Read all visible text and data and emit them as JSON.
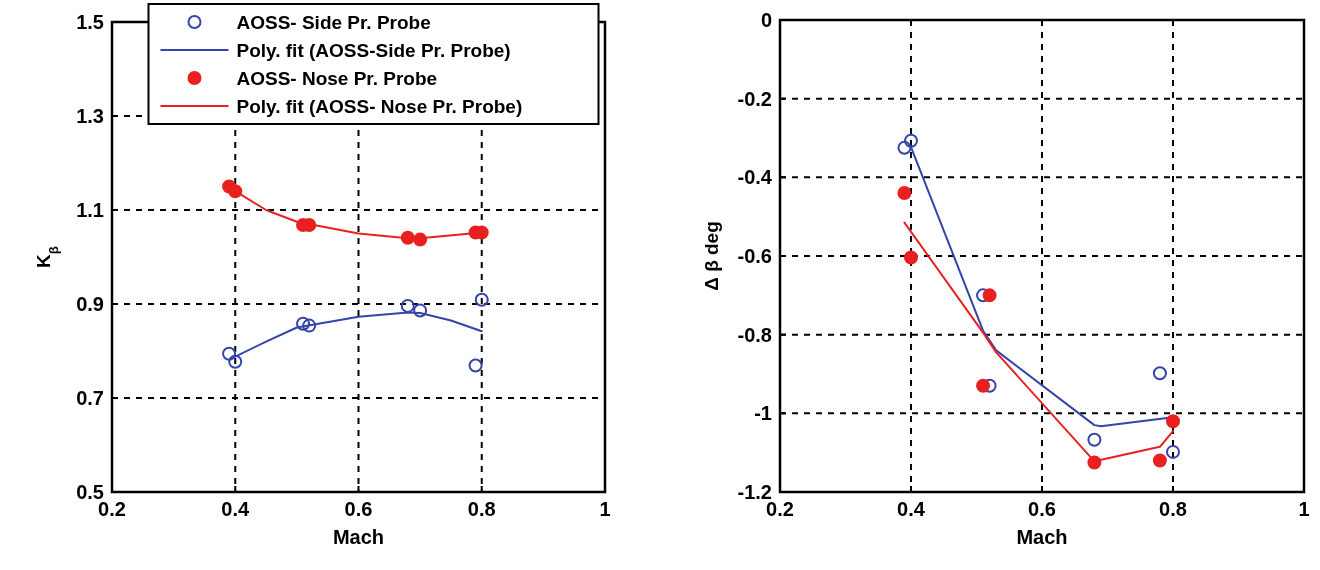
{
  "chart_data": [
    {
      "type": "scatter",
      "xlabel": "Mach",
      "ylabel": "K$_{β}$",
      "xlim": [
        0.2,
        1
      ],
      "xticks": [
        0.2,
        0.4,
        0.6,
        0.8,
        1
      ],
      "ylim": [
        0.5,
        1.5
      ],
      "yticks": [
        0.5,
        0.7,
        0.9,
        1.1,
        1.3,
        1.5
      ],
      "grid": true,
      "legend": "top",
      "series": [
        {
          "name": "AOSS- Side Pr. Probe",
          "marker": "circle",
          "color": "#3344aa",
          "x": [
            0.39,
            0.4,
            0.51,
            0.52,
            0.68,
            0.7,
            0.79,
            0.8
          ],
          "values": [
            0.794,
            0.777,
            0.858,
            0.854,
            0.896,
            0.886,
            0.769,
            0.909
          ]
        },
        {
          "name": "Poly. fit (AOSS-Side Pr. Probe)",
          "type": "line",
          "color": "#3344aa",
          "x": [
            0.4,
            0.45,
            0.5,
            0.6,
            0.68,
            0.7,
            0.75,
            0.8
          ],
          "values": [
            0.788,
            0.82,
            0.85,
            0.873,
            0.882,
            0.881,
            0.865,
            0.842
          ]
        },
        {
          "name": "AOSS- Nose Pr. Probe",
          "marker": "circle",
          "color": "#e82020",
          "x": [
            0.39,
            0.4,
            0.51,
            0.52,
            0.68,
            0.7,
            0.79,
            0.8
          ],
          "values": [
            1.15,
            1.14,
            1.068,
            1.068,
            1.041,
            1.037,
            1.052,
            1.052
          ]
        },
        {
          "name": "Poly. fit (AOSS- Nose Pr. Probe)",
          "type": "line",
          "color": "#e82020",
          "x": [
            0.4,
            0.45,
            0.5,
            0.6,
            0.68,
            0.7,
            0.8
          ],
          "values": [
            1.14,
            1.1,
            1.075,
            1.05,
            1.04,
            1.04,
            1.052
          ]
        }
      ]
    },
    {
      "type": "scatter",
      "xlabel": "Mach",
      "ylabel": "Δ β deg",
      "xlim": [
        0.2,
        1
      ],
      "xticks": [
        0.2,
        0.4,
        0.6,
        0.8,
        1
      ],
      "ylim": [
        -1.2,
        0
      ],
      "yticks": [
        -1.2,
        -1,
        -0.8,
        -0.6,
        -0.4,
        -0.2,
        0
      ],
      "grid": true,
      "series": [
        {
          "marker": "circle",
          "color": "#3344aa",
          "x": [
            0.39,
            0.4,
            0.51,
            0.52,
            0.68,
            0.78,
            0.8
          ],
          "values": [
            -0.325,
            -0.307,
            -0.7,
            -0.93,
            -1.067,
            -0.898,
            -1.098
          ]
        },
        {
          "type": "line",
          "color": "#3344aa",
          "x": [
            0.4,
            0.51,
            0.53,
            0.68,
            0.69,
            0.8
          ],
          "values": [
            -0.323,
            -0.79,
            -0.84,
            -1.03,
            -1.033,
            -1.01
          ]
        },
        {
          "marker": "circle",
          "color": "#e82020",
          "x": [
            0.39,
            0.4,
            0.51,
            0.52,
            0.68,
            0.78,
            0.8
          ],
          "values": [
            -0.44,
            -0.604,
            -0.93,
            -0.7,
            -1.125,
            -1.12,
            -1.02
          ]
        },
        {
          "type": "line",
          "color": "#e82020",
          "x": [
            0.39,
            0.51,
            0.53,
            0.68,
            0.78,
            0.8
          ],
          "values": [
            -0.515,
            -0.795,
            -0.845,
            -1.122,
            -1.085,
            -1.045
          ]
        }
      ]
    }
  ]
}
